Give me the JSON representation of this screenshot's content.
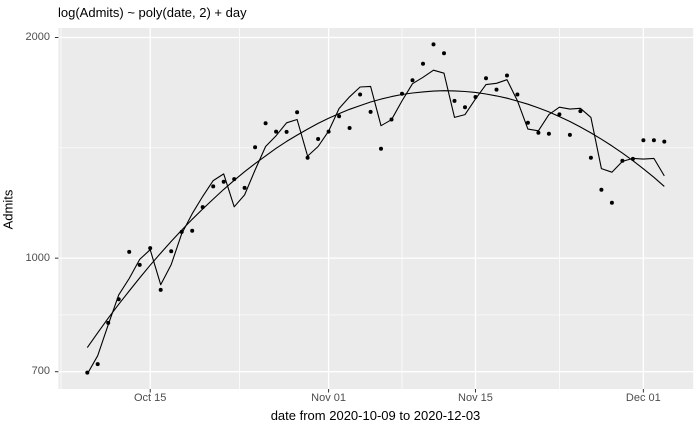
{
  "figure": {
    "title": "log(Admits) ~ poly(date, 2) + day",
    "x_axis_label": "date from 2020-10-09 to 2020-12-03",
    "y_axis_label": "Admits"
  },
  "colors": {
    "figure_background": "#FFFFFF",
    "panel_background": "#EBEBEB",
    "grid_major": "#FFFFFF",
    "grid_minor": "#FFFFFF",
    "data_color": "#000000",
    "tick_mark": "#333333",
    "tick_label": "#4D4D4D",
    "title_text": "#000000"
  },
  "chart_data": {
    "type": "scatter",
    "title": "log(Admits) ~ poly(date, 2) + day",
    "xlabel": "date from 2020-10-09 to 2020-12-03",
    "ylabel": "Admits",
    "y_scale": "log10",
    "grid": true,
    "legend": "none",
    "x_unit": "date (one value per day, index 0 = 2020-10-09)",
    "dates": [
      "2020-10-09",
      "2020-10-10",
      "2020-10-11",
      "2020-10-12",
      "2020-10-13",
      "2020-10-14",
      "2020-10-15",
      "2020-10-16",
      "2020-10-17",
      "2020-10-18",
      "2020-10-19",
      "2020-10-20",
      "2020-10-21",
      "2020-10-22",
      "2020-10-23",
      "2020-10-24",
      "2020-10-25",
      "2020-10-26",
      "2020-10-27",
      "2020-10-28",
      "2020-10-29",
      "2020-10-30",
      "2020-10-31",
      "2020-11-01",
      "2020-11-02",
      "2020-11-03",
      "2020-11-04",
      "2020-11-05",
      "2020-11-06",
      "2020-11-07",
      "2020-11-08",
      "2020-11-09",
      "2020-11-10",
      "2020-11-11",
      "2020-11-12",
      "2020-11-13",
      "2020-11-14",
      "2020-11-15",
      "2020-11-16",
      "2020-11-17",
      "2020-11-18",
      "2020-11-19",
      "2020-11-20",
      "2020-11-21",
      "2020-11-22",
      "2020-11-23",
      "2020-11-24",
      "2020-11-25",
      "2020-11-26",
      "2020-11-27",
      "2020-11-28",
      "2020-11-29",
      "2020-11-30",
      "2020-12-01",
      "2020-12-02",
      "2020-12-03"
    ],
    "series": [
      {
        "name": "observed_admits",
        "kind": "points",
        "values": [
          698,
          717,
          816,
          879,
          1020,
          979,
          1032,
          905,
          1022,
          1086,
          1090,
          1174,
          1253,
          1271,
          1282,
          1247,
          1417,
          1528,
          1488,
          1487,
          1581,
          1371,
          1454,
          1488,
          1562,
          1505,
          1672,
          1583,
          1410,
          1546,
          1676,
          1749,
          1842,
          1957,
          1904,
          1639,
          1606,
          1659,
          1760,
          1698,
          1775,
          1672,
          1530,
          1483,
          1478,
          1571,
          1473,
          1587,
          1371,
          1240,
          1190,
          1358,
          1366,
          1448,
          1448,
          1442
        ]
      },
      {
        "name": "fitted_with_day_effect",
        "kind": "line",
        "values": [
          695,
          736,
          811,
          891,
          938,
          996,
          1027,
          920,
          980,
          1080,
          1150,
          1214,
          1276,
          1303,
          1175,
          1220,
          1319,
          1420,
          1469,
          1530,
          1546,
          1378,
          1420,
          1490,
          1600,
          1660,
          1712,
          1715,
          1516,
          1545,
          1639,
          1730,
          1765,
          1805,
          1788,
          1556,
          1570,
          1649,
          1725,
          1732,
          1752,
          1640,
          1500,
          1492,
          1570,
          1607,
          1597,
          1601,
          1556,
          1325,
          1310,
          1355,
          1368,
          1365,
          1368,
          1295
        ]
      },
      {
        "name": "quadratic_trend",
        "kind": "line",
        "values": [
          755,
          791,
          828,
          865,
          902,
          940,
          978,
          1016,
          1054,
          1092,
          1130,
          1167,
          1204,
          1241,
          1277,
          1312,
          1346,
          1379,
          1412,
          1443,
          1472,
          1500,
          1527,
          1552,
          1575,
          1596,
          1615,
          1633,
          1648,
          1661,
          1672,
          1680,
          1686,
          1690,
          1692,
          1691,
          1688,
          1683,
          1675,
          1665,
          1653,
          1638,
          1622,
          1603,
          1583,
          1560,
          1536,
          1510,
          1482,
          1453,
          1423,
          1391,
          1358,
          1324,
          1289,
          1253
        ]
      }
    ],
    "x_ticks": [
      {
        "label": "Oct 15",
        "day": 6
      },
      {
        "label": "Nov 01",
        "day": 23
      },
      {
        "label": "Nov 15",
        "day": 37
      },
      {
        "label": "Dec 01",
        "day": 53
      }
    ],
    "x_minor_days": [
      -2.5,
      14.5,
      30,
      45
    ],
    "x_domain_days": [
      -2.75,
      57.75
    ],
    "y_ticks": [
      {
        "label": "700",
        "value": 700
      },
      {
        "label": "1000",
        "value": 1000
      },
      {
        "label": "2000",
        "value": 2000
      }
    ],
    "y_minor_values": [
      836.7,
      1414.2
    ],
    "y_domain_log10": [
      2.8215,
      3.314
    ]
  }
}
